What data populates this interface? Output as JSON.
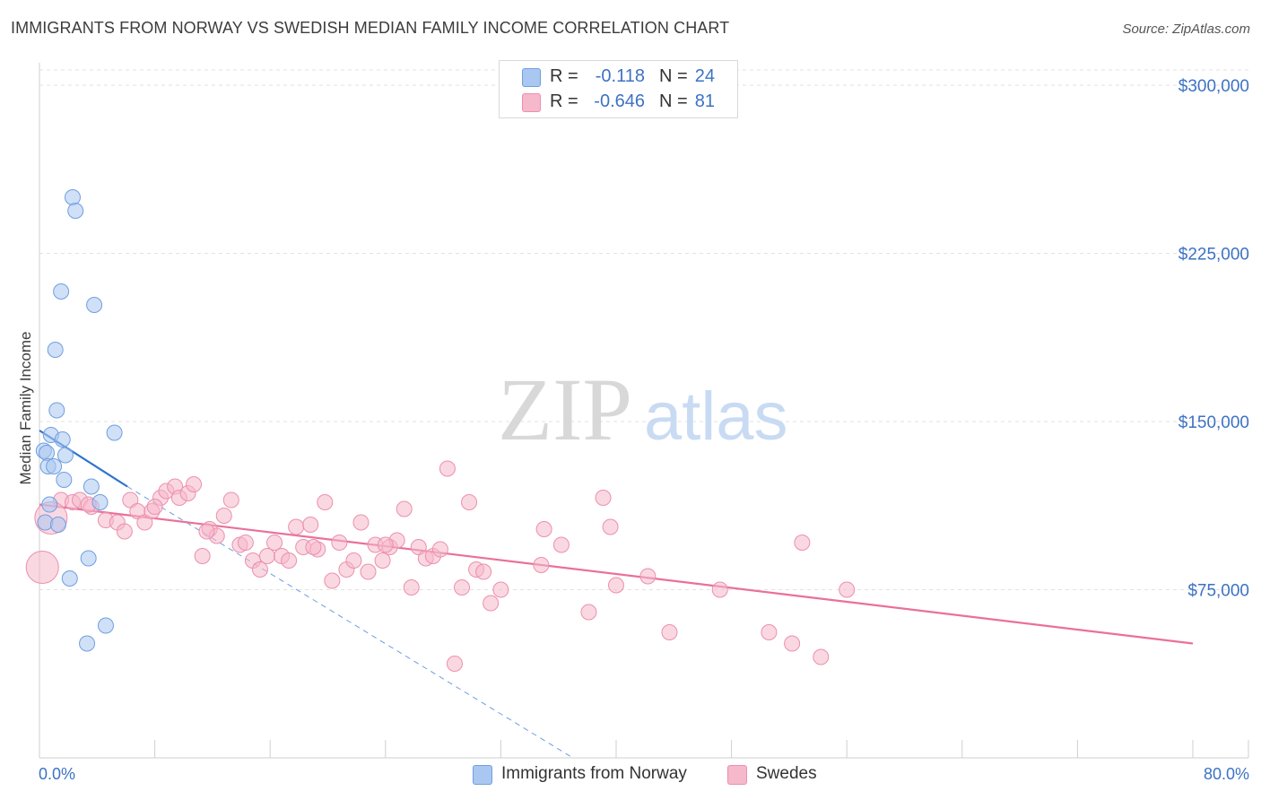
{
  "title": "IMMIGRANTS FROM NORWAY VS SWEDISH MEDIAN FAMILY INCOME CORRELATION CHART",
  "source": "Source: ZipAtlas.com",
  "watermark": {
    "zip": "ZIP",
    "atlas": "atlas"
  },
  "legend": {
    "r_label": "R =",
    "n_label": "N =",
    "rows": [
      {
        "r": "-0.118",
        "n": "24",
        "color": "#a9c7f0"
      },
      {
        "r": "-0.646",
        "n": "81",
        "color": "#f6b8cb"
      }
    ]
  },
  "colors": {
    "blue": "#a9c7f0",
    "blue_stroke": "#6f9fe0",
    "blue_line": "#2f74d0",
    "pink": "#f6b8cb",
    "pink_stroke": "#ec8fae",
    "pink_line": "#e9709a",
    "axis_text": "#3d72c4"
  },
  "chart_data": {
    "type": "scatter",
    "ylabel": "Median Family Income",
    "xlim": [
      0,
      80
    ],
    "ylim": [
      0,
      310000
    ],
    "x_tick_labels": [
      "0.0%",
      "80.0%"
    ],
    "y_ticks": [
      {
        "value": 75000,
        "label": "$75,000"
      },
      {
        "value": 150000,
        "label": "$150,000"
      },
      {
        "value": 225000,
        "label": "$225,000"
      },
      {
        "value": 300000,
        "label": "$300,000"
      }
    ],
    "grid": true,
    "series": [
      {
        "name": "Immigrants from Norway",
        "color": "#a9c7f0",
        "points": [
          [
            2.3,
            250000
          ],
          [
            2.5,
            244000
          ],
          [
            1.5,
            208000
          ],
          [
            3.8,
            202000
          ],
          [
            1.1,
            182000
          ],
          [
            1.2,
            155000
          ],
          [
            0.8,
            144000
          ],
          [
            1.6,
            142000
          ],
          [
            5.2,
            145000
          ],
          [
            0.3,
            137000
          ],
          [
            0.5,
            136000
          ],
          [
            1.8,
            135000
          ],
          [
            0.6,
            130000
          ],
          [
            1.0,
            130000
          ],
          [
            1.7,
            124000
          ],
          [
            3.6,
            121000
          ],
          [
            0.7,
            113000
          ],
          [
            4.2,
            114000
          ],
          [
            0.4,
            105000
          ],
          [
            1.3,
            104000
          ],
          [
            3.4,
            89000
          ],
          [
            2.1,
            80000
          ],
          [
            4.6,
            59000
          ],
          [
            3.3,
            51000
          ]
        ]
      },
      {
        "name": "Swedes",
        "color": "#f6b8cb",
        "points": [
          [
            1.5,
            115000
          ],
          [
            0.8,
            107000
          ],
          [
            0.2,
            85000
          ],
          [
            2.3,
            114000
          ],
          [
            2.8,
            115000
          ],
          [
            3.6,
            112000
          ],
          [
            4.6,
            106000
          ],
          [
            5.4,
            105000
          ],
          [
            5.9,
            101000
          ],
          [
            6.3,
            115000
          ],
          [
            6.8,
            110000
          ],
          [
            7.3,
            105000
          ],
          [
            7.8,
            110000
          ],
          [
            8.4,
            116000
          ],
          [
            8.8,
            119000
          ],
          [
            9.4,
            121000
          ],
          [
            9.7,
            116000
          ],
          [
            10.3,
            118000
          ],
          [
            10.7,
            122000
          ],
          [
            11.3,
            90000
          ],
          [
            11.8,
            102000
          ],
          [
            12.3,
            99000
          ],
          [
            12.8,
            108000
          ],
          [
            13.3,
            115000
          ],
          [
            13.9,
            95000
          ],
          [
            14.3,
            96000
          ],
          [
            14.8,
            88000
          ],
          [
            15.3,
            84000
          ],
          [
            15.8,
            90000
          ],
          [
            16.3,
            96000
          ],
          [
            16.8,
            90000
          ],
          [
            17.3,
            88000
          ],
          [
            17.8,
            103000
          ],
          [
            18.3,
            94000
          ],
          [
            18.8,
            104000
          ],
          [
            19.3,
            93000
          ],
          [
            19.8,
            114000
          ],
          [
            20.3,
            79000
          ],
          [
            20.8,
            96000
          ],
          [
            21.3,
            84000
          ],
          [
            21.8,
            88000
          ],
          [
            22.3,
            105000
          ],
          [
            22.8,
            83000
          ],
          [
            23.3,
            95000
          ],
          [
            23.8,
            88000
          ],
          [
            24.3,
            94000
          ],
          [
            24.8,
            97000
          ],
          [
            25.3,
            111000
          ],
          [
            25.8,
            76000
          ],
          [
            26.3,
            94000
          ],
          [
            26.8,
            89000
          ],
          [
            27.3,
            90000
          ],
          [
            27.8,
            93000
          ],
          [
            28.3,
            129000
          ],
          [
            28.8,
            42000
          ],
          [
            29.3,
            76000
          ],
          [
            29.8,
            114000
          ],
          [
            30.3,
            84000
          ],
          [
            30.8,
            83000
          ],
          [
            31.3,
            69000
          ],
          [
            32.0,
            75000
          ],
          [
            34.8,
            86000
          ],
          [
            35.0,
            102000
          ],
          [
            36.2,
            95000
          ],
          [
            38.1,
            65000
          ],
          [
            39.1,
            116000
          ],
          [
            39.6,
            103000
          ],
          [
            40.0,
            77000
          ],
          [
            42.2,
            81000
          ],
          [
            43.7,
            56000
          ],
          [
            47.2,
            75000
          ],
          [
            50.6,
            56000
          ],
          [
            52.2,
            51000
          ],
          [
            52.9,
            96000
          ],
          [
            54.2,
            45000
          ],
          [
            56.0,
            75000
          ],
          [
            3.4,
            113000
          ],
          [
            8.0,
            112000
          ],
          [
            11.6,
            101000
          ],
          [
            19.0,
            94000
          ],
          [
            24.0,
            95000
          ]
        ]
      }
    ],
    "trendlines": [
      {
        "series": "Immigrants from Norway",
        "x": [
          0,
          6.1
        ],
        "y": [
          146000,
          121000
        ],
        "dashed_extension_to": [
          37.0,
          0
        ]
      },
      {
        "series": "Swedes",
        "x": [
          0,
          80
        ],
        "y": [
          113000,
          51000
        ]
      }
    ]
  }
}
